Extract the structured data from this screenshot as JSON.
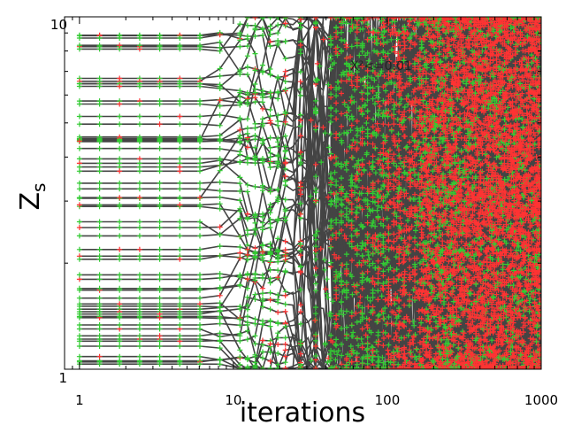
{
  "chart_data": {
    "type": "line",
    "title": "",
    "xlabel": "iterations",
    "ylabel": "Z",
    "ylabel_subscript": "s",
    "x_scale": "log",
    "y_scale": "log",
    "xlim": [
      0.8,
      1000
    ],
    "ylim": [
      1,
      10
    ],
    "x_ticks": [
      1,
      10,
      100,
      1000
    ],
    "x_tick_labels": [
      "1",
      "10",
      "100",
      "1000"
    ],
    "y_ticks": [
      1,
      10
    ],
    "y_tick_labels": [
      "1",
      "10"
    ],
    "annotation": "X²<=0.01",
    "colors": {
      "line": "#444444",
      "marker_accepted": "#33cc33",
      "marker_rejected": "#ff3333"
    },
    "marker": "+",
    "series_count": 60,
    "grid": false,
    "legend": "none"
  }
}
